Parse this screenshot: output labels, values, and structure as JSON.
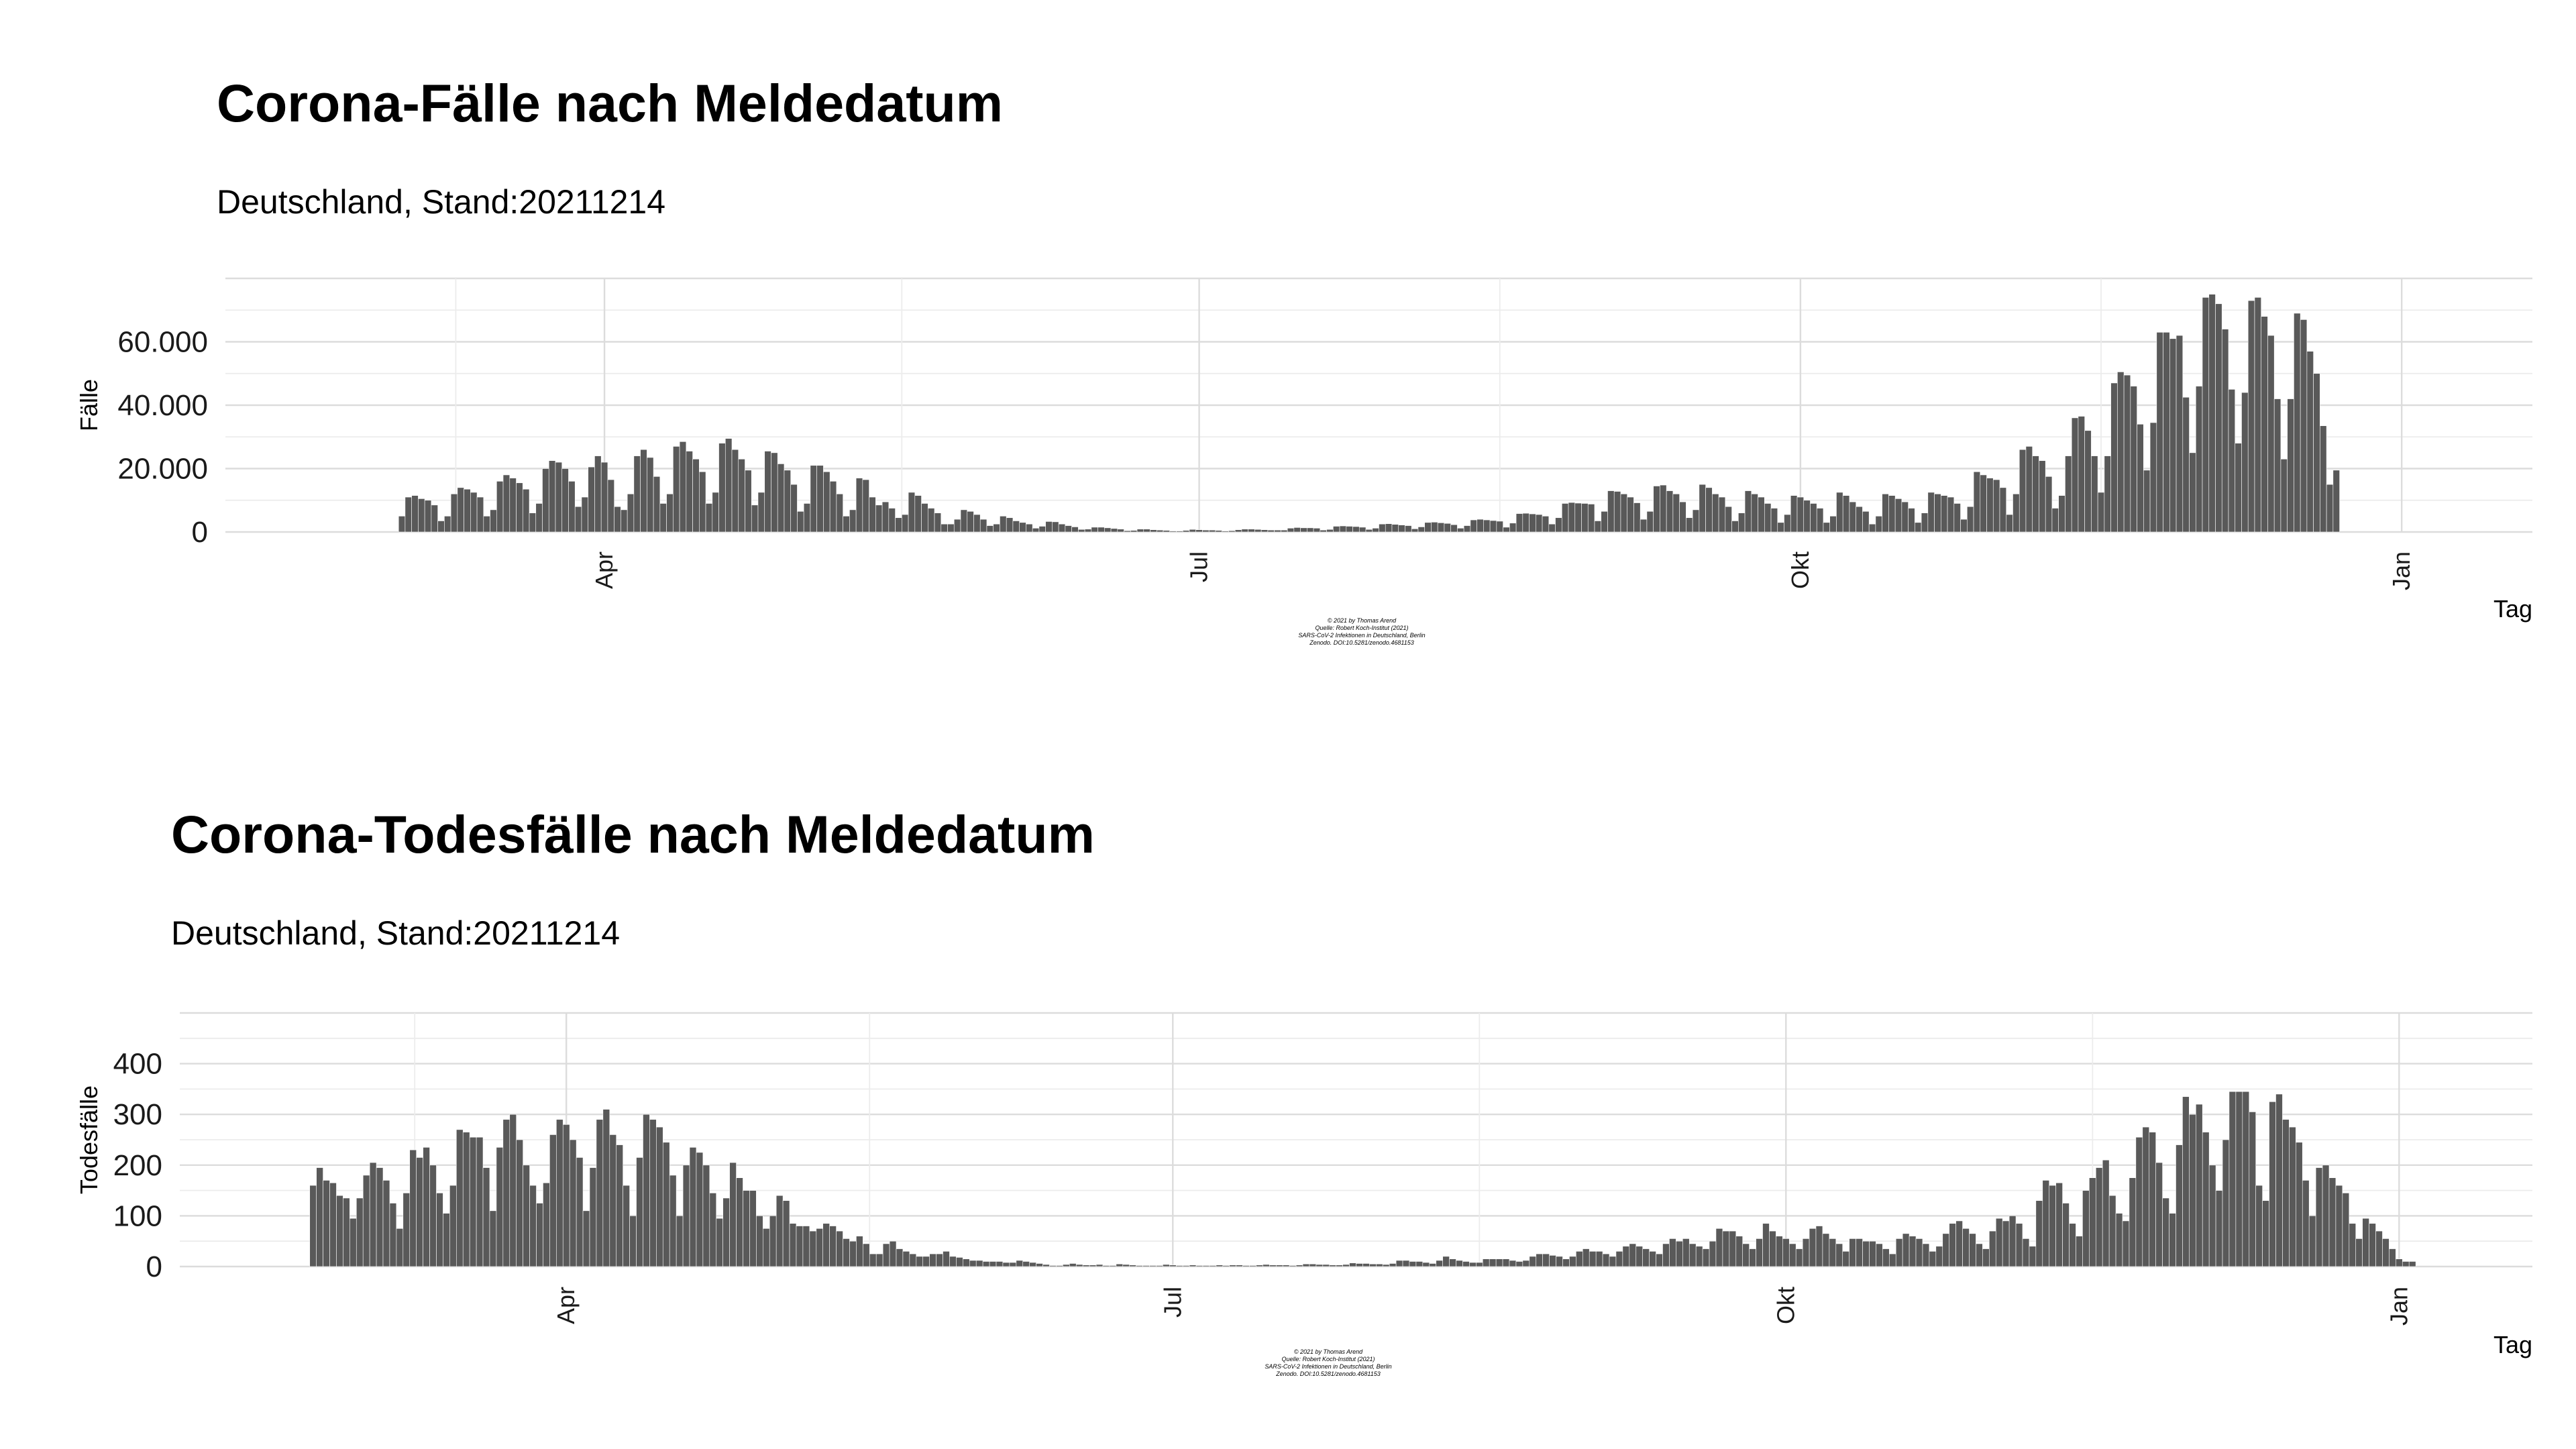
{
  "chart_data": [
    {
      "type": "bar",
      "title": "Corona-Fälle nach Meldedatum",
      "subtitle": "Deutschland, Stand:20211214",
      "xlabel": "Tag",
      "ylabel": "Fälle",
      "x_ticks": [
        "Apr",
        "Jul",
        "Okt",
        "Jan"
      ],
      "y_ticks": [
        "0",
        "20.000",
        "40.000",
        "60.000"
      ],
      "ylim": [
        0,
        80000
      ],
      "xlim": [
        "2021-02-02",
        "2022-01-21"
      ],
      "grid": true,
      "caption": [
        "© 2021 by Thomas Arend",
        "Quelle: Robert Koch-Institut (2021)",
        "SARS-CoV-2 Infektionen in Deutschland, Berlin",
        "Zenodo. DOI:10.5281/zenodo.4681153"
      ],
      "series": [
        {
          "start_date": "2021-03-01",
          "values": [
            5000,
            11000,
            11500,
            10500,
            10000,
            8500,
            3500,
            5000,
            12000,
            14000,
            13500,
            12500,
            11000,
            5000,
            7000,
            16000,
            18000,
            17000,
            15500,
            13500,
            6000,
            9000,
            20000,
            22500,
            22000,
            20000,
            16000,
            8000,
            11000,
            20500,
            24000,
            22000,
            16500,
            8000,
            7000,
            12000,
            24000,
            26000,
            23500,
            17500,
            9000,
            12000,
            27000,
            28500,
            25500,
            23000,
            19000,
            9000,
            12500,
            28000,
            29500,
            26000,
            23000,
            19500,
            8500,
            12500,
            25500,
            25000,
            21500,
            19500,
            15000,
            6500,
            9000,
            21000,
            21000,
            19000,
            16000,
            12000,
            5000,
            7000,
            17000,
            16500,
            11000,
            8500,
            9500,
            7500,
            4500,
            5500,
            12500,
            11500,
            9000,
            7500,
            6000,
            2500,
            2500,
            4000,
            7000,
            6500,
            5500,
            4000,
            2000,
            2500,
            5000,
            4500,
            3500,
            3000,
            2500,
            1200,
            1800,
            3300,
            3200,
            2500,
            2000,
            1600,
            800,
            900,
            1500,
            1500,
            1300,
            1100,
            900,
            400,
            500,
            900,
            900,
            700,
            600,
            500,
            300,
            300,
            500,
            800,
            700,
            600,
            600,
            500,
            300,
            400,
            700,
            900,
            900,
            800,
            700,
            600,
            600,
            600,
            1200,
            1400,
            1300,
            1300,
            1200,
            600,
            800,
            1800,
            1900,
            1800,
            1700,
            1500,
            800,
            1200,
            2500,
            2600,
            2400,
            2200,
            2000,
            1000,
            1600,
            3000,
            3100,
            2900,
            2700,
            2300,
            1200,
            2000,
            3800,
            4000,
            3800,
            3600,
            3400,
            1500,
            2800,
            5800,
            5900,
            5700,
            5500,
            5000,
            2500,
            4500,
            9000,
            9300,
            9100,
            9000,
            8800,
            3500,
            6500,
            13000,
            12800,
            12000,
            11000,
            9200,
            4000,
            6500,
            14500,
            14800,
            13000,
            12000,
            9500,
            4500,
            7000,
            15000,
            14000,
            12000,
            11000,
            8000,
            3500,
            6000,
            13000,
            12000,
            11000,
            9000,
            7500,
            3000,
            5500,
            11500,
            11000,
            10000,
            9000,
            7500,
            3000,
            5000,
            12500,
            11500,
            9500,
            8000,
            6500,
            2500,
            5000,
            12000,
            11500,
            10500,
            9500,
            7500,
            3000,
            6000,
            12500,
            12000,
            11500,
            11000,
            9000,
            4000,
            8000,
            19000,
            18000,
            17000,
            16500,
            14000,
            5500,
            12000,
            26000,
            27000,
            24000,
            22500,
            17500,
            7500,
            11500,
            24000,
            36000,
            36500,
            32000,
            24000,
            12500,
            24000,
            47000,
            50500,
            49500,
            46000,
            34000,
            19500,
            34500,
            63000,
            63000,
            61000,
            62000,
            42500,
            25000,
            46000,
            74000,
            75000,
            72000,
            64000,
            45000,
            28000,
            44000,
            73000,
            74000,
            68000,
            62000,
            42000,
            23000,
            42000,
            69000,
            67000,
            57000,
            50000,
            33500,
            15000,
            19500
          ]
        }
      ]
    },
    {
      "type": "bar",
      "title": "Corona-Todesfälle nach Meldedatum",
      "subtitle": "Deutschland, Stand:20211214",
      "xlabel": "Tag",
      "ylabel": "Todesfälle",
      "x_ticks": [
        "Apr",
        "Jul",
        "Okt",
        "Jan"
      ],
      "y_ticks": [
        "0",
        "100",
        "200",
        "300",
        "400"
      ],
      "ylim": [
        0,
        500
      ],
      "xlim": [
        "2021-02-02",
        "2022-01-21"
      ],
      "grid": true,
      "caption": [
        "© 2021 by Thomas Arend",
        "Quelle: Robert Koch-Institut (2021)",
        "SARS-CoV-2 Infektionen in Deutschland, Berlin",
        "Zenodo. DOI:10.5281/zenodo.4681153"
      ],
      "series": [
        {
          "start_date": "2021-02-22",
          "values": [
            160,
            195,
            170,
            165,
            140,
            135,
            95,
            135,
            180,
            205,
            195,
            170,
            125,
            75,
            145,
            230,
            215,
            235,
            200,
            145,
            105,
            160,
            270,
            265,
            255,
            255,
            195,
            110,
            235,
            290,
            300,
            250,
            200,
            160,
            125,
            165,
            260,
            290,
            280,
            250,
            215,
            110,
            195,
            290,
            310,
            260,
            240,
            160,
            100,
            215,
            300,
            290,
            275,
            245,
            180,
            100,
            200,
            235,
            225,
            200,
            145,
            95,
            135,
            205,
            175,
            150,
            150,
            100,
            75,
            100,
            140,
            130,
            85,
            80,
            80,
            70,
            75,
            85,
            80,
            70,
            55,
            50,
            60,
            45,
            25,
            25,
            45,
            50,
            35,
            30,
            25,
            20,
            20,
            25,
            25,
            30,
            20,
            18,
            15,
            12,
            12,
            10,
            10,
            10,
            8,
            8,
            12,
            10,
            8,
            6,
            4,
            2,
            2,
            4,
            6,
            4,
            3,
            3,
            4,
            2,
            2,
            5,
            4,
            3,
            2,
            2,
            2,
            2,
            4,
            3,
            2,
            2,
            3,
            2,
            2,
            2,
            3,
            2,
            3,
            3,
            2,
            2,
            3,
            4,
            3,
            3,
            3,
            2,
            3,
            5,
            5,
            4,
            4,
            3,
            3,
            4,
            7,
            6,
            6,
            5,
            5,
            4,
            6,
            12,
            12,
            10,
            10,
            8,
            6,
            12,
            20,
            15,
            12,
            10,
            8,
            8,
            15,
            15,
            15,
            15,
            12,
            10,
            12,
            20,
            25,
            25,
            22,
            20,
            15,
            20,
            30,
            35,
            30,
            30,
            25,
            20,
            30,
            40,
            45,
            40,
            35,
            30,
            25,
            45,
            55,
            50,
            55,
            45,
            40,
            35,
            50,
            75,
            70,
            70,
            60,
            45,
            35,
            55,
            85,
            70,
            60,
            55,
            45,
            35,
            55,
            75,
            80,
            65,
            55,
            45,
            30,
            55,
            55,
            50,
            50,
            45,
            35,
            25,
            55,
            65,
            60,
            55,
            45,
            30,
            40,
            65,
            85,
            90,
            75,
            65,
            45,
            35,
            70,
            95,
            90,
            100,
            85,
            55,
            40,
            130,
            170,
            160,
            165,
            125,
            85,
            60,
            150,
            175,
            195,
            210,
            140,
            105,
            90,
            175,
            255,
            275,
            265,
            205,
            135,
            105,
            240,
            335,
            300,
            320,
            265,
            200,
            150,
            250,
            345,
            345,
            345,
            305,
            160,
            130,
            325,
            340,
            290,
            275,
            245,
            170,
            100,
            195,
            200,
            175,
            160,
            145,
            85,
            55,
            95,
            85,
            70,
            55,
            35,
            15,
            10,
            10
          ]
        }
      ]
    }
  ]
}
